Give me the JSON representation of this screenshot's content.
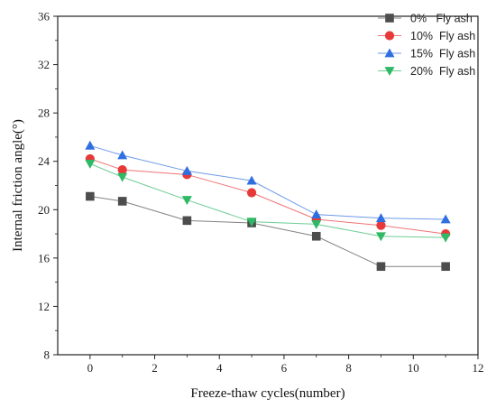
{
  "chart_data": {
    "type": "line",
    "title": "",
    "xlabel": "Freeze-thaw cycles(number)",
    "ylabel": "Internal friction angle(°)",
    "xlim": [
      -1,
      12
    ],
    "ylim": [
      8,
      36
    ],
    "xticks": [
      0,
      2,
      4,
      6,
      8,
      10,
      12
    ],
    "yticks": [
      8,
      12,
      16,
      20,
      24,
      28,
      32,
      36
    ],
    "grid": false,
    "legend_position": "top-right",
    "x": [
      0,
      1,
      3,
      5,
      7,
      9,
      11
    ],
    "series": [
      {
        "name": "0%   Fly ash",
        "values": [
          21.1,
          20.7,
          19.1,
          18.9,
          17.8,
          15.3,
          15.3
        ],
        "color": "#4d4d4d",
        "marker": "square"
      },
      {
        "name": "10%  Fly ash",
        "values": [
          24.2,
          23.3,
          22.9,
          21.4,
          19.2,
          18.7,
          18.0
        ],
        "color": "#e8393a",
        "marker": "circle"
      },
      {
        "name": "15%  Fly ash",
        "values": [
          25.3,
          24.5,
          23.2,
          22.4,
          19.6,
          19.3,
          19.2
        ],
        "color": "#2f6fe0",
        "marker": "triangle-up"
      },
      {
        "name": "20%  Fly ash",
        "values": [
          23.8,
          22.7,
          20.8,
          19.0,
          18.8,
          17.8,
          17.7
        ],
        "color": "#2fb866",
        "marker": "triangle-down"
      }
    ]
  }
}
